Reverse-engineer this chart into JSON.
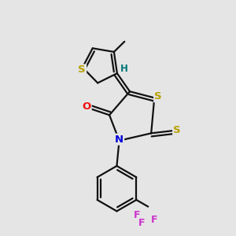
{
  "bg_color": "#e5e5e5",
  "bond_color": "#111111",
  "bond_width": 1.6,
  "atom_colors": {
    "S": "#b8a000",
    "O": "#ee1111",
    "N": "#0000dd",
    "F": "#cc33cc",
    "H": "#007777",
    "C": "#111111"
  },
  "font_size_atom": 9.5,
  "font_size_H": 8.5,
  "font_size_F": 9.0,
  "font_size_CF3": 9.0
}
